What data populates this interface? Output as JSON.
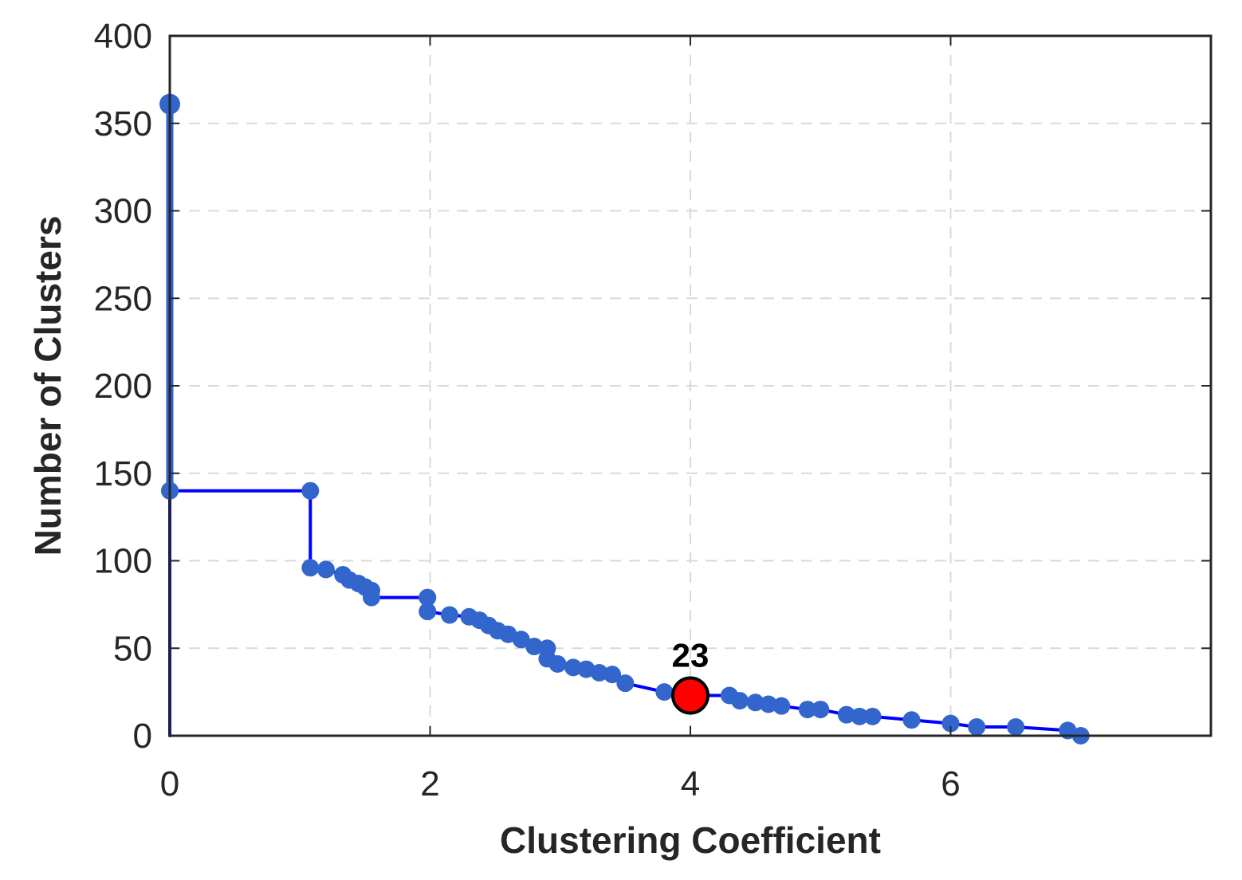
{
  "chart_data": {
    "type": "line",
    "title": "",
    "xlabel": "Clustering Coefficient",
    "ylabel": "Number of Clusters",
    "xlim": [
      0,
      8
    ],
    "ylim": [
      0,
      400
    ],
    "xticks": [
      0,
      2,
      4,
      6
    ],
    "yticks": [
      0,
      50,
      100,
      150,
      200,
      250,
      300,
      350,
      400
    ],
    "grid": true,
    "line_color": "#0000ff",
    "marker_color": "#3366cc",
    "highlight_color": "#ff0000",
    "series": [
      {
        "points": [
          [
            0,
            0
          ],
          [
            0,
            140
          ],
          [
            0,
            361
          ],
          [
            0,
            140
          ],
          [
            1.08,
            140
          ],
          [
            1.08,
            96
          ],
          [
            1.2,
            95
          ],
          [
            1.33,
            92
          ],
          [
            1.38,
            89
          ],
          [
            1.45,
            87
          ],
          [
            1.5,
            85
          ],
          [
            1.55,
            83
          ],
          [
            1.55,
            79
          ],
          [
            1.98,
            79
          ],
          [
            1.98,
            71
          ],
          [
            2.15,
            69
          ],
          [
            2.3,
            68
          ],
          [
            2.38,
            66
          ],
          [
            2.45,
            63
          ],
          [
            2.52,
            60
          ],
          [
            2.6,
            58
          ],
          [
            2.7,
            55
          ],
          [
            2.8,
            51
          ],
          [
            2.9,
            50
          ],
          [
            2.9,
            44
          ],
          [
            2.98,
            41
          ],
          [
            3.1,
            39
          ],
          [
            3.2,
            38
          ],
          [
            3.3,
            36
          ],
          [
            3.4,
            35
          ],
          [
            3.5,
            30
          ],
          [
            3.8,
            25
          ],
          [
            4.0,
            23
          ],
          [
            4.3,
            23
          ],
          [
            4.38,
            20
          ],
          [
            4.5,
            19
          ],
          [
            4.6,
            18
          ],
          [
            4.7,
            17
          ],
          [
            4.9,
            15
          ],
          [
            5.0,
            15
          ],
          [
            5.2,
            12
          ],
          [
            5.3,
            11
          ],
          [
            5.4,
            11
          ],
          [
            5.7,
            9
          ],
          [
            6.0,
            7
          ],
          [
            6.2,
            5
          ],
          [
            6.5,
            5
          ],
          [
            6.9,
            3
          ],
          [
            7.0,
            0
          ]
        ]
      }
    ],
    "highlight": {
      "x": 4.0,
      "y": 23
    },
    "annotations": [
      {
        "text": "23",
        "x": 4.0,
        "y": 23
      }
    ]
  }
}
